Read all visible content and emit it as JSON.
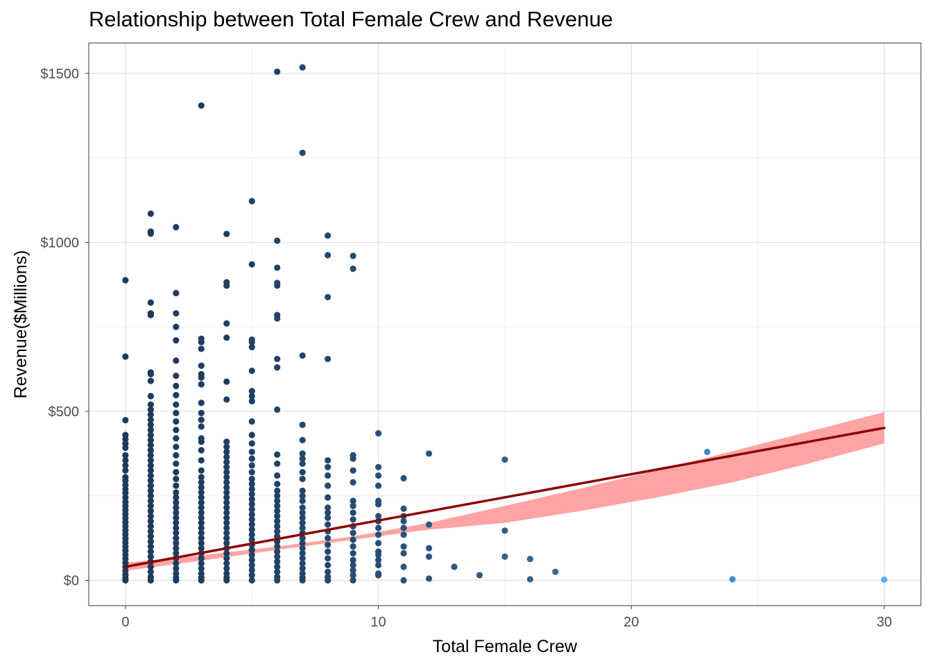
{
  "chart_data": {
    "type": "scatter",
    "title": "Relationship between Total Female Crew and Revenue",
    "xlabel": "Total Female Crew",
    "ylabel": "Revenue($Millions)",
    "xlim": [
      -1.45,
      31.45
    ],
    "ylim": [
      -75,
      1590
    ],
    "x_ticks": [
      0,
      10,
      20,
      30
    ],
    "x_tick_labels": [
      "0",
      "10",
      "20",
      "30"
    ],
    "y_ticks": [
      0,
      500,
      1000,
      1500
    ],
    "y_tick_labels": [
      "$0",
      "$500",
      "$1000",
      "$1500"
    ],
    "grid": true,
    "legend": "none",
    "point_color_low": "#1d3a5c",
    "point_color_high": "#56b1f7",
    "fit_line_color": "#8b0000",
    "ribbon_color": "#ff9a9a",
    "points": [
      [
        0,
        888
      ],
      [
        0,
        662
      ],
      [
        0,
        474
      ],
      [
        0,
        430
      ],
      [
        0,
        418
      ],
      [
        0,
        405
      ],
      [
        0,
        392
      ],
      [
        0,
        370
      ],
      [
        0,
        355
      ],
      [
        0,
        340
      ],
      [
        0,
        325
      ],
      [
        0,
        305
      ],
      [
        0,
        295
      ],
      [
        0,
        282
      ],
      [
        0,
        270
      ],
      [
        0,
        258
      ],
      [
        0,
        245
      ],
      [
        0,
        232
      ],
      [
        0,
        220
      ],
      [
        0,
        208
      ],
      [
        0,
        196
      ],
      [
        0,
        184
      ],
      [
        0,
        172
      ],
      [
        0,
        160
      ],
      [
        0,
        148
      ],
      [
        0,
        136
      ],
      [
        0,
        124
      ],
      [
        0,
        112
      ],
      [
        0,
        100
      ],
      [
        0,
        88
      ],
      [
        0,
        76
      ],
      [
        0,
        64
      ],
      [
        0,
        52
      ],
      [
        0,
        40
      ],
      [
        0,
        28
      ],
      [
        0,
        16
      ],
      [
        0,
        6
      ],
      [
        0,
        0
      ],
      [
        1,
        1085
      ],
      [
        1,
        1032
      ],
      [
        1,
        1026
      ],
      [
        1,
        822
      ],
      [
        1,
        790
      ],
      [
        1,
        785
      ],
      [
        1,
        615
      ],
      [
        1,
        610
      ],
      [
        1,
        590
      ],
      [
        1,
        545
      ],
      [
        1,
        520
      ],
      [
        1,
        505
      ],
      [
        1,
        490
      ],
      [
        1,
        475
      ],
      [
        1,
        460
      ],
      [
        1,
        445
      ],
      [
        1,
        430
      ],
      [
        1,
        415
      ],
      [
        1,
        400
      ],
      [
        1,
        385
      ],
      [
        1,
        370
      ],
      [
        1,
        355
      ],
      [
        1,
        340
      ],
      [
        1,
        325
      ],
      [
        1,
        310
      ],
      [
        1,
        295
      ],
      [
        1,
        280
      ],
      [
        1,
        265
      ],
      [
        1,
        250
      ],
      [
        1,
        235
      ],
      [
        1,
        220
      ],
      [
        1,
        205
      ],
      [
        1,
        190
      ],
      [
        1,
        175
      ],
      [
        1,
        160
      ],
      [
        1,
        145
      ],
      [
        1,
        130
      ],
      [
        1,
        115
      ],
      [
        1,
        100
      ],
      [
        1,
        85
      ],
      [
        1,
        70
      ],
      [
        1,
        55
      ],
      [
        1,
        40
      ],
      [
        1,
        25
      ],
      [
        1,
        10
      ],
      [
        1,
        0
      ],
      [
        2,
        1045
      ],
      [
        2,
        850
      ],
      [
        2,
        790
      ],
      [
        2,
        750
      ],
      [
        2,
        710
      ],
      [
        2,
        650
      ],
      [
        2,
        605
      ],
      [
        2,
        575
      ],
      [
        2,
        548
      ],
      [
        2,
        520
      ],
      [
        2,
        495
      ],
      [
        2,
        470
      ],
      [
        2,
        445
      ],
      [
        2,
        420
      ],
      [
        2,
        395
      ],
      [
        2,
        370
      ],
      [
        2,
        345
      ],
      [
        2,
        320
      ],
      [
        2,
        300
      ],
      [
        2,
        280
      ],
      [
        2,
        260
      ],
      [
        2,
        245
      ],
      [
        2,
        230
      ],
      [
        2,
        215
      ],
      [
        2,
        200
      ],
      [
        2,
        185
      ],
      [
        2,
        170
      ],
      [
        2,
        155
      ],
      [
        2,
        140
      ],
      [
        2,
        125
      ],
      [
        2,
        110
      ],
      [
        2,
        95
      ],
      [
        2,
        80
      ],
      [
        2,
        65
      ],
      [
        2,
        50
      ],
      [
        2,
        35
      ],
      [
        2,
        20
      ],
      [
        2,
        8
      ],
      [
        2,
        0
      ],
      [
        3,
        1405
      ],
      [
        3,
        715
      ],
      [
        3,
        705
      ],
      [
        3,
        685
      ],
      [
        3,
        635
      ],
      [
        3,
        610
      ],
      [
        3,
        600
      ],
      [
        3,
        580
      ],
      [
        3,
        525
      ],
      [
        3,
        495
      ],
      [
        3,
        475
      ],
      [
        3,
        455
      ],
      [
        3,
        420
      ],
      [
        3,
        410
      ],
      [
        3,
        385
      ],
      [
        3,
        355
      ],
      [
        3,
        325
      ],
      [
        3,
        305
      ],
      [
        3,
        290
      ],
      [
        3,
        275
      ],
      [
        3,
        260
      ],
      [
        3,
        245
      ],
      [
        3,
        230
      ],
      [
        3,
        215
      ],
      [
        3,
        200
      ],
      [
        3,
        185
      ],
      [
        3,
        170
      ],
      [
        3,
        155
      ],
      [
        3,
        140
      ],
      [
        3,
        125
      ],
      [
        3,
        110
      ],
      [
        3,
        95
      ],
      [
        3,
        80
      ],
      [
        3,
        65
      ],
      [
        3,
        50
      ],
      [
        3,
        35
      ],
      [
        3,
        20
      ],
      [
        3,
        8
      ],
      [
        3,
        0
      ],
      [
        4,
        1025
      ],
      [
        4,
        882
      ],
      [
        4,
        872
      ],
      [
        4,
        760
      ],
      [
        4,
        718
      ],
      [
        4,
        588
      ],
      [
        4,
        535
      ],
      [
        4,
        410
      ],
      [
        4,
        395
      ],
      [
        4,
        380
      ],
      [
        4,
        365
      ],
      [
        4,
        350
      ],
      [
        4,
        335
      ],
      [
        4,
        320
      ],
      [
        4,
        305
      ],
      [
        4,
        290
      ],
      [
        4,
        275
      ],
      [
        4,
        260
      ],
      [
        4,
        245
      ],
      [
        4,
        230
      ],
      [
        4,
        215
      ],
      [
        4,
        200
      ],
      [
        4,
        185
      ],
      [
        4,
        170
      ],
      [
        4,
        155
      ],
      [
        4,
        140
      ],
      [
        4,
        125
      ],
      [
        4,
        110
      ],
      [
        4,
        95
      ],
      [
        4,
        80
      ],
      [
        4,
        65
      ],
      [
        4,
        50
      ],
      [
        4,
        35
      ],
      [
        4,
        20
      ],
      [
        4,
        8
      ],
      [
        4,
        0
      ],
      [
        5,
        1122
      ],
      [
        5,
        935
      ],
      [
        5,
        712
      ],
      [
        5,
        705
      ],
      [
        5,
        690
      ],
      [
        5,
        620
      ],
      [
        5,
        560
      ],
      [
        5,
        545
      ],
      [
        5,
        530
      ],
      [
        5,
        470
      ],
      [
        5,
        430
      ],
      [
        5,
        405
      ],
      [
        5,
        380
      ],
      [
        5,
        360
      ],
      [
        5,
        340
      ],
      [
        5,
        320
      ],
      [
        5,
        300
      ],
      [
        5,
        285
      ],
      [
        5,
        270
      ],
      [
        5,
        255
      ],
      [
        5,
        240
      ],
      [
        5,
        225
      ],
      [
        5,
        210
      ],
      [
        5,
        195
      ],
      [
        5,
        180
      ],
      [
        5,
        165
      ],
      [
        5,
        150
      ],
      [
        5,
        135
      ],
      [
        5,
        120
      ],
      [
        5,
        105
      ],
      [
        5,
        90
      ],
      [
        5,
        75
      ],
      [
        5,
        60
      ],
      [
        5,
        45
      ],
      [
        5,
        30
      ],
      [
        5,
        15
      ],
      [
        5,
        0
      ],
      [
        6,
        1505
      ],
      [
        6,
        1005
      ],
      [
        6,
        925
      ],
      [
        6,
        880
      ],
      [
        6,
        872
      ],
      [
        6,
        785
      ],
      [
        6,
        775
      ],
      [
        6,
        655
      ],
      [
        6,
        630
      ],
      [
        6,
        505
      ],
      [
        6,
        372
      ],
      [
        6,
        345
      ],
      [
        6,
        310
      ],
      [
        6,
        285
      ],
      [
        6,
        265
      ],
      [
        6,
        250
      ],
      [
        6,
        235
      ],
      [
        6,
        220
      ],
      [
        6,
        205
      ],
      [
        6,
        190
      ],
      [
        6,
        175
      ],
      [
        6,
        160
      ],
      [
        6,
        145
      ],
      [
        6,
        130
      ],
      [
        6,
        115
      ],
      [
        6,
        100
      ],
      [
        6,
        85
      ],
      [
        6,
        70
      ],
      [
        6,
        55
      ],
      [
        6,
        40
      ],
      [
        6,
        25
      ],
      [
        6,
        10
      ],
      [
        6,
        0
      ],
      [
        7,
        1518
      ],
      [
        7,
        1265
      ],
      [
        7,
        665
      ],
      [
        7,
        460
      ],
      [
        7,
        415
      ],
      [
        7,
        375
      ],
      [
        7,
        360
      ],
      [
        7,
        345
      ],
      [
        7,
        320
      ],
      [
        7,
        300
      ],
      [
        7,
        265
      ],
      [
        7,
        250
      ],
      [
        7,
        235
      ],
      [
        7,
        215
      ],
      [
        7,
        200
      ],
      [
        7,
        185
      ],
      [
        7,
        170
      ],
      [
        7,
        155
      ],
      [
        7,
        140
      ],
      [
        7,
        125
      ],
      [
        7,
        110
      ],
      [
        7,
        95
      ],
      [
        7,
        80
      ],
      [
        7,
        65
      ],
      [
        7,
        50
      ],
      [
        7,
        35
      ],
      [
        7,
        20
      ],
      [
        7,
        8
      ],
      [
        7,
        0
      ],
      [
        8,
        1020
      ],
      [
        8,
        962
      ],
      [
        8,
        838
      ],
      [
        8,
        655
      ],
      [
        8,
        355
      ],
      [
        8,
        335
      ],
      [
        8,
        310
      ],
      [
        8,
        280
      ],
      [
        8,
        245
      ],
      [
        8,
        215
      ],
      [
        8,
        200
      ],
      [
        8,
        185
      ],
      [
        8,
        165
      ],
      [
        8,
        145
      ],
      [
        8,
        125
      ],
      [
        8,
        105
      ],
      [
        8,
        85
      ],
      [
        8,
        65
      ],
      [
        8,
        45
      ],
      [
        8,
        25
      ],
      [
        8,
        10
      ],
      [
        8,
        0
      ],
      [
        9,
        960
      ],
      [
        9,
        922
      ],
      [
        9,
        370
      ],
      [
        9,
        360
      ],
      [
        9,
        325
      ],
      [
        9,
        290
      ],
      [
        9,
        235
      ],
      [
        9,
        220
      ],
      [
        9,
        200
      ],
      [
        9,
        180
      ],
      [
        9,
        160
      ],
      [
        9,
        140
      ],
      [
        9,
        120
      ],
      [
        9,
        100
      ],
      [
        9,
        80
      ],
      [
        9,
        60
      ],
      [
        9,
        45
      ],
      [
        9,
        30
      ],
      [
        9,
        15
      ],
      [
        9,
        0
      ],
      [
        10,
        435
      ],
      [
        10,
        335
      ],
      [
        10,
        310
      ],
      [
        10,
        280
      ],
      [
        10,
        235
      ],
      [
        10,
        225
      ],
      [
        10,
        190
      ],
      [
        10,
        175
      ],
      [
        10,
        155
      ],
      [
        10,
        135
      ],
      [
        10,
        110
      ],
      [
        10,
        85
      ],
      [
        10,
        75
      ],
      [
        10,
        60
      ],
      [
        10,
        45
      ],
      [
        10,
        20
      ],
      [
        10,
        15
      ],
      [
        11,
        302
      ],
      [
        11,
        212
      ],
      [
        11,
        190
      ],
      [
        11,
        175
      ],
      [
        11,
        155
      ],
      [
        11,
        135
      ],
      [
        11,
        100
      ],
      [
        11,
        80
      ],
      [
        11,
        40
      ],
      [
        11,
        0
      ],
      [
        12,
        375
      ],
      [
        12,
        165
      ],
      [
        12,
        95
      ],
      [
        12,
        70
      ],
      [
        12,
        5
      ],
      [
        13,
        40
      ],
      [
        14,
        15
      ],
      [
        15,
        357
      ],
      [
        15,
        147
      ],
      [
        15,
        70
      ],
      [
        16,
        63
      ],
      [
        16,
        3
      ],
      [
        17,
        25
      ],
      [
        23,
        380
      ],
      [
        24,
        3
      ],
      [
        30,
        2
      ]
    ],
    "fit_line": {
      "x": [
        0,
        30
      ],
      "y": [
        40,
        451
      ]
    },
    "ribbon_upper": [
      [
        0,
        52
      ],
      [
        3,
        74
      ],
      [
        6,
        100
      ],
      [
        9,
        130
      ],
      [
        12,
        170
      ],
      [
        15,
        220
      ],
      [
        18,
        272
      ],
      [
        21,
        326
      ],
      [
        24,
        382
      ],
      [
        27,
        440
      ],
      [
        30,
        498
      ]
    ],
    "ribbon_lower": [
      [
        0,
        28
      ],
      [
        3,
        58
      ],
      [
        6,
        90
      ],
      [
        9,
        120
      ],
      [
        12,
        150
      ],
      [
        15,
        170
      ],
      [
        18,
        205
      ],
      [
        21,
        245
      ],
      [
        24,
        290
      ],
      [
        27,
        345
      ],
      [
        30,
        405
      ]
    ]
  }
}
